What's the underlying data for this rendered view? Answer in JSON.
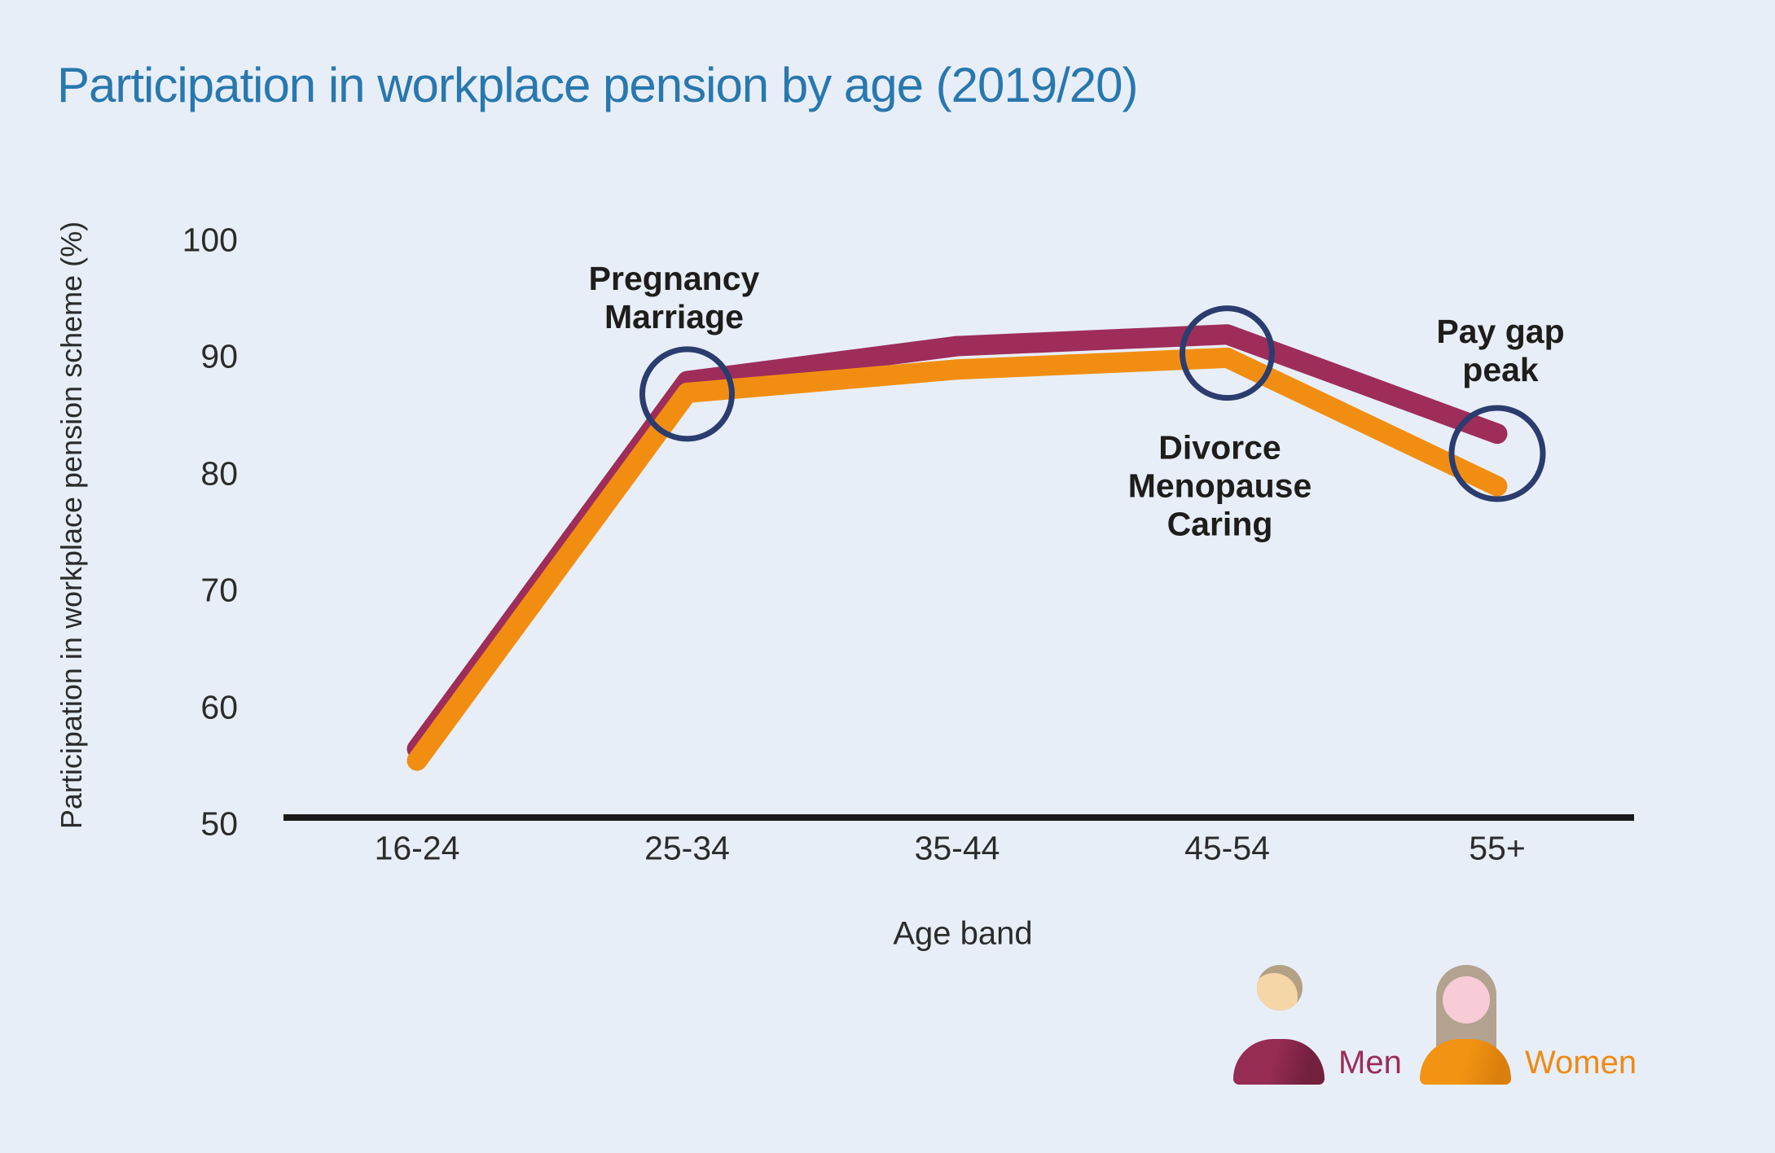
{
  "title": "Participation in workplace pension by age (2019/20)",
  "chart_data": {
    "type": "line",
    "title": "Participation in workplace pension by age (2019/20)",
    "xlabel": "Age band",
    "ylabel": "Participation in workplace pension scheme (%)",
    "categories": [
      "16-24",
      "25-34",
      "35-44",
      "45-54",
      "55+"
    ],
    "y_ticks": [
      100,
      90,
      80,
      70,
      60,
      50
    ],
    "ylim": [
      50,
      100
    ],
    "grid": false,
    "legend_position": "bottom-right",
    "series": [
      {
        "name": "Men",
        "color": "#9e2d5a",
        "values": [
          56.5,
          88,
          91,
          92,
          83.5
        ]
      },
      {
        "name": "Women",
        "color": "#f18e12",
        "values": [
          55.5,
          87,
          89,
          90,
          79
        ]
      }
    ]
  },
  "annotations": [
    {
      "lines": [
        "Pregnancy",
        "Marriage"
      ],
      "circle": {
        "category_index": 1,
        "value": 86.9,
        "radius": 55
      }
    },
    {
      "lines": [
        "Divorce",
        "Menopause",
        "Caring"
      ],
      "circle": {
        "category_index": 3,
        "value": 90.4,
        "radius": 55
      }
    },
    {
      "lines": [
        "Pay gap",
        "peak"
      ],
      "circle": {
        "category_index": 4,
        "value": 81.8,
        "radius": 56
      }
    }
  ],
  "legend": {
    "items": [
      {
        "label": "Men",
        "color": "#9b2c57"
      },
      {
        "label": "Women",
        "color": "#ef8a14"
      }
    ]
  },
  "colors": {
    "background": "#e8eef8",
    "title": "#2878ae",
    "axis": "#1a1a1a",
    "tick_text": "#2b2b2b",
    "annotation_text": "#1d1d1b",
    "highlight_circle": "#2b3c6e",
    "men_line": "#9e2d5a",
    "women_line": "#f18e12"
  }
}
